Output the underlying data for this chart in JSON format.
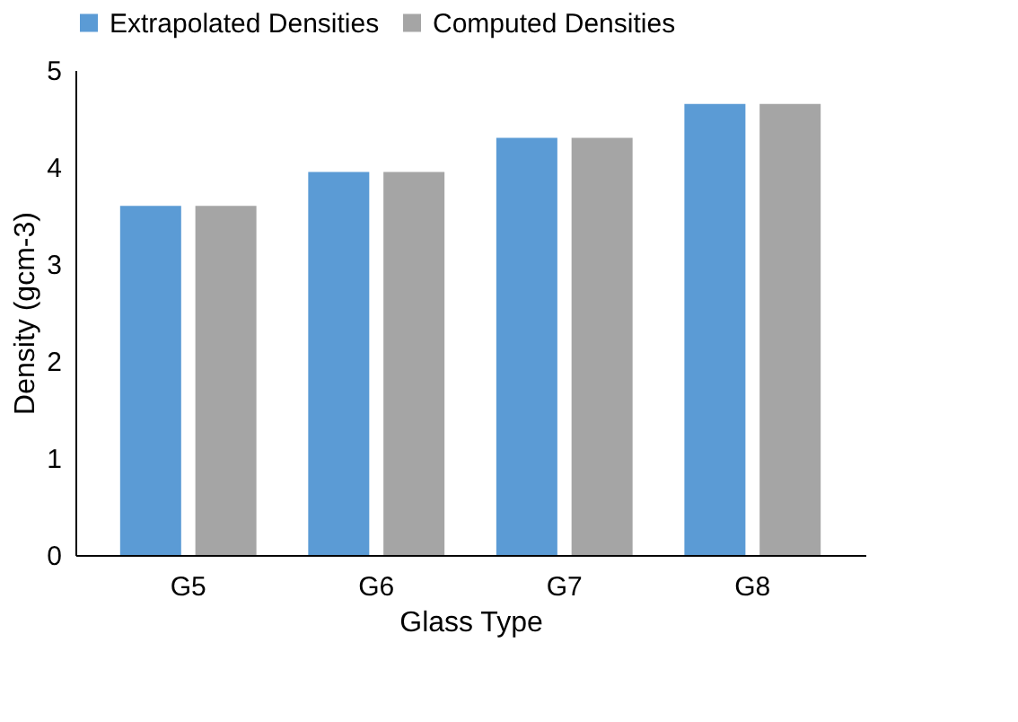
{
  "chart_data": {
    "type": "bar",
    "xlabel": "Glass Type",
    "ylabel": "Density (gcm-3)",
    "categories": [
      "G5",
      "G6",
      "G7",
      "G8"
    ],
    "series": [
      {
        "name": "Extrapolated Densities",
        "color": "#5b9bd5",
        "values": [
          3.6,
          3.95,
          4.3,
          4.65
        ]
      },
      {
        "name": "Computed Densities",
        "color": "#a5a5a5",
        "values": [
          3.6,
          3.95,
          4.3,
          4.65
        ]
      }
    ],
    "ylim": [
      0,
      5
    ],
    "yticks": [
      0,
      1,
      2,
      3,
      4,
      5
    ],
    "grid": false,
    "legend": "top"
  }
}
